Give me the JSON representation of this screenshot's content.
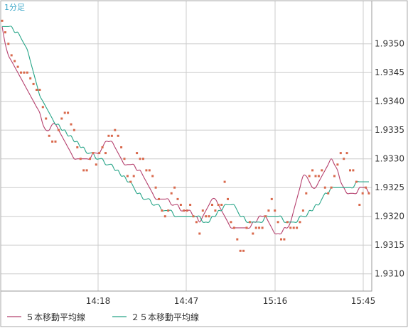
{
  "timeframe_label": "1分足",
  "chart_data": {
    "type": "line",
    "title": "",
    "xlabel": "",
    "ylabel": "",
    "grid": true,
    "legend_position": "bottom-left",
    "x_ticks": [
      "14:18",
      "14:47",
      "15:16",
      "15:45"
    ],
    "y_ticks": [
      "1.9310",
      "1.9315",
      "1.9320",
      "1.9325",
      "1.9330",
      "1.9335",
      "1.9340",
      "1.9345",
      "1.9350"
    ],
    "ylim": [
      1.9307,
      1.93575
    ],
    "colors": {
      "points": "#d9694c",
      "ma5": "#b5406e",
      "ma25": "#27a588",
      "grid": "#cccccc",
      "frame": "#999999"
    },
    "points": [
      1.9354,
      1.9352,
      1.935,
      1.9348,
      1.9347,
      1.9346,
      1.9345,
      1.9345,
      1.9345,
      1.9344,
      1.9343,
      1.9342,
      1.9342,
      1.9339,
      1.9337,
      1.9334,
      1.9333,
      1.9333,
      1.9335,
      1.9337,
      1.9338,
      1.9338,
      1.9336,
      1.9335,
      1.9332,
      1.933,
      1.9328,
      1.9328,
      1.933,
      1.9331,
      1.9329,
      1.9331,
      1.9332,
      1.9331,
      1.9334,
      1.9334,
      1.9335,
      1.9334,
      1.9332,
      1.933,
      1.9327,
      1.9326,
      1.9327,
      1.9331,
      1.933,
      1.933,
      1.9328,
      1.9328,
      1.9327,
      1.9325,
      1.9323,
      1.9321,
      1.932,
      1.9321,
      1.9324,
      1.9325,
      1.9323,
      1.9322,
      1.9321,
      1.9321,
      1.9322,
      1.932,
      1.9319,
      1.9317,
      1.9321,
      1.932,
      1.932,
      1.9322,
      1.9321,
      1.9322,
      1.9322,
      1.9326,
      1.9323,
      1.9319,
      1.9318,
      1.9316,
      1.9314,
      1.9314,
      1.9318,
      1.9319,
      1.9317,
      1.9318,
      1.9318,
      1.9318,
      1.932,
      1.9321,
      1.9323,
      1.9321,
      1.9319,
      1.9316,
      1.9316,
      1.9319,
      1.9318,
      1.9318,
      1.9318,
      1.9319,
      1.9321,
      1.9324,
      1.9327,
      1.9328,
      1.9327,
      1.9327,
      1.9328,
      1.9325,
      1.9324,
      1.9325,
      1.9327,
      1.9329,
      1.9331,
      1.933,
      1.9331,
      1.9328,
      1.9328,
      1.9326,
      1.9322,
      1.9324,
      1.9325,
      1.9324
    ],
    "series": [
      {
        "name": "５本移動平均線",
        "values": [
          1.9353,
          1.935,
          1.9348,
          1.9347,
          1.9346,
          1.9345,
          1.9344,
          1.9343,
          1.9342,
          1.9341,
          1.934,
          1.9339,
          1.9338,
          1.9336,
          1.9335,
          1.9335,
          1.9336,
          1.9336,
          1.9335,
          1.9334,
          1.9333,
          1.9332,
          1.9331,
          1.933,
          1.933,
          1.933,
          1.933,
          1.933,
          1.933,
          1.9331,
          1.9331,
          1.9331,
          1.9332,
          1.9333,
          1.9333,
          1.9333,
          1.9332,
          1.9331,
          1.933,
          1.9329,
          1.9329,
          1.9329,
          1.9329,
          1.9328,
          1.9328,
          1.9327,
          1.9326,
          1.9325,
          1.9324,
          1.9323,
          1.9323,
          1.9323,
          1.9323,
          1.9323,
          1.9322,
          1.9322,
          1.9322,
          1.9321,
          1.9321,
          1.9321,
          1.9321,
          1.932,
          1.932,
          1.9319,
          1.932,
          1.9321,
          1.9322,
          1.9323,
          1.9323,
          1.9322,
          1.9321,
          1.932,
          1.9319,
          1.9318,
          1.9318,
          1.9318,
          1.9318,
          1.9318,
          1.9318,
          1.9318,
          1.9319,
          1.9319,
          1.932,
          1.932,
          1.932,
          1.9319,
          1.9318,
          1.9317,
          1.9317,
          1.9317,
          1.9318,
          1.9318,
          1.9319,
          1.9321,
          1.9323,
          1.9325,
          1.9327,
          1.9327,
          1.9326,
          1.9325,
          1.9325,
          1.9326,
          1.9327,
          1.9328,
          1.9329,
          1.933,
          1.9329,
          1.9328,
          1.9326,
          1.9325,
          1.9324,
          1.9324,
          1.9324,
          1.9324,
          1.9325,
          1.9325,
          1.9325,
          1.9324
        ]
      },
      {
        "name": "２５本移動平均線",
        "values": [
          1.9353,
          1.9353,
          1.9353,
          1.9353,
          1.9352,
          1.9352,
          1.9351,
          1.935,
          1.9349,
          1.9347,
          1.9345,
          1.9343,
          1.9341,
          1.934,
          1.9339,
          1.9338,
          1.9337,
          1.9336,
          1.9336,
          1.9335,
          1.9335,
          1.9334,
          1.9334,
          1.9333,
          1.9333,
          1.9332,
          1.9332,
          1.9331,
          1.9331,
          1.9331,
          1.933,
          1.933,
          1.933,
          1.9329,
          1.9329,
          1.9329,
          1.9328,
          1.9328,
          1.9327,
          1.9327,
          1.9326,
          1.9326,
          1.9325,
          1.9324,
          1.9324,
          1.9323,
          1.9323,
          1.9323,
          1.9322,
          1.9322,
          1.9322,
          1.9321,
          1.9321,
          1.9321,
          1.9321,
          1.932,
          1.932,
          1.932,
          1.932,
          1.932,
          1.932,
          1.932,
          1.932,
          1.932,
          1.9319,
          1.9319,
          1.9319,
          1.932,
          1.932,
          1.9321,
          1.9321,
          1.9322,
          1.9322,
          1.9322,
          1.9322,
          1.9321,
          1.932,
          1.932,
          1.9319,
          1.9319,
          1.9319,
          1.9319,
          1.9319,
          1.9319,
          1.932,
          1.932,
          1.932,
          1.932,
          1.932,
          1.932,
          1.9319,
          1.9319,
          1.9319,
          1.9319,
          1.9319,
          1.932,
          1.932,
          1.932,
          1.9321,
          1.9321,
          1.9322,
          1.9322,
          1.9323,
          1.9324,
          1.9324,
          1.9325,
          1.9325,
          1.9325,
          1.9325,
          1.9325,
          1.9325,
          1.9325,
          1.9325,
          1.9326,
          1.9326,
          1.9326,
          1.9326,
          1.9326
        ]
      }
    ]
  }
}
